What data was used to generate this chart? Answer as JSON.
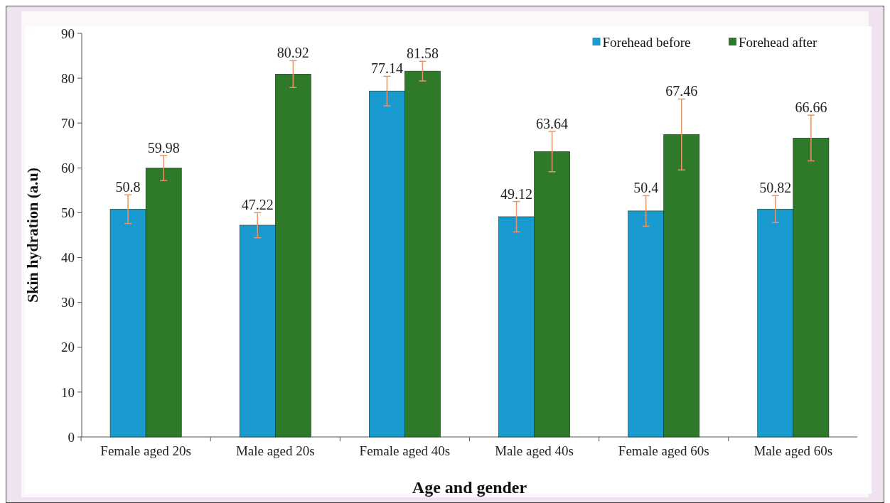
{
  "chart_data": {
    "type": "bar",
    "xlabel": "Age and gender",
    "ylabel": "Skin hydration (a.u)",
    "categories": [
      "Female aged 20s",
      "Male aged 20s",
      "Female aged 40s",
      "Male aged 40s",
      "Female aged 60s",
      "Male aged 60s"
    ],
    "series": [
      {
        "name": "Forehead before",
        "color": "#1a9bd0",
        "values": [
          50.8,
          47.22,
          77.14,
          49.12,
          50.4,
          50.82
        ],
        "errors": [
          3.2,
          2.8,
          3.3,
          3.4,
          3.4,
          3.0
        ]
      },
      {
        "name": "Forehead after",
        "color": "#2f7a2a",
        "values": [
          59.98,
          80.92,
          81.58,
          63.64,
          67.46,
          66.66
        ],
        "errors": [
          2.8,
          3.0,
          2.2,
          4.5,
          7.9,
          5.1
        ]
      }
    ],
    "ylim": [
      0,
      90
    ],
    "yticks": [
      0,
      10,
      20,
      30,
      40,
      50,
      60,
      70,
      80,
      90
    ],
    "data_labels": true,
    "legend": "top right",
    "grid": false
  }
}
